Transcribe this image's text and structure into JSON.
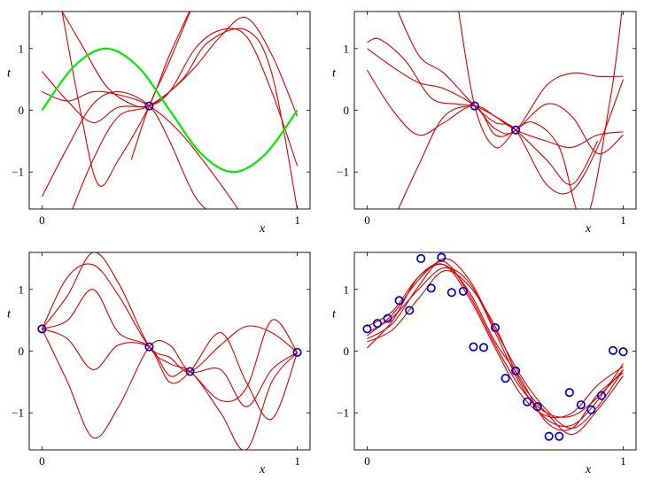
{
  "chart_data": [
    {
      "type": "line",
      "title": "",
      "xlabel": "x",
      "ylabel": "t",
      "xlim": [
        -0.05,
        1.05
      ],
      "ylim": [
        -1.6,
        1.6
      ],
      "xticks": [
        0,
        1
      ],
      "xticklabels": [
        "0",
        "1"
      ],
      "yticks": [
        -1,
        0,
        1
      ],
      "yticklabels": [
        "−1",
        "0",
        "1"
      ],
      "grid": false,
      "target": {
        "color": "#00ee00",
        "x": [
          0,
          0.125,
          0.25,
          0.375,
          0.5,
          0.625,
          0.75,
          0.875,
          1
        ],
        "y": [
          0,
          0.71,
          1.0,
          0.71,
          0,
          -0.71,
          -1.0,
          -0.71,
          0
        ]
      },
      "points": {
        "color": "#0000cc",
        "x": [
          0.42
        ],
        "y": [
          0.07
        ]
      },
      "series": [
        {
          "color": "#dd0000",
          "x": [
            0,
            0.1,
            0.2,
            0.3,
            0.42,
            0.5,
            0.6,
            0.7,
            0.8,
            0.9,
            1
          ],
          "y": [
            0.63,
            0.15,
            -0.2,
            0.05,
            0.07,
            0.3,
            1.0,
            1.3,
            1.2,
            0.3,
            -0.9
          ]
        },
        {
          "color": "#dd0000",
          "x": [
            0,
            0.1,
            0.2,
            0.3,
            0.42,
            0.5,
            0.6,
            0.7
          ],
          "y": [
            -1.4,
            -0.6,
            0.1,
            0.3,
            0.07,
            -0.5,
            -1.4,
            -1.8
          ]
        },
        {
          "color": "#dd0000",
          "x": [
            0.05,
            0.15,
            0.25,
            0.35,
            0.42,
            0.5,
            0.6,
            0.7,
            0.8,
            0.9,
            1
          ],
          "y": [
            1.8,
            1.1,
            0.4,
            0.1,
            0.07,
            0.3,
            0.7,
            1.2,
            1.5,
            0.9,
            -0.1
          ]
        },
        {
          "color": "#dd0000",
          "x": [
            0.07,
            0.15,
            0.22,
            0.3,
            0.42,
            0.5,
            0.6
          ],
          "y": [
            1.8,
            0.0,
            -1.2,
            -0.8,
            0.07,
            0.9,
            1.8
          ]
        },
        {
          "color": "#dd0000",
          "x": [
            0.1,
            0.2,
            0.3,
            0.42,
            0.55,
            0.65,
            0.8,
            0.9,
            1
          ],
          "y": [
            -1.8,
            -0.8,
            -0.1,
            0.07,
            0.5,
            1.1,
            1.3,
            0.6,
            -1.6
          ]
        },
        {
          "color": "#dd0000",
          "x": [
            0,
            0.1,
            0.2,
            0.3,
            0.42,
            0.55,
            0.7,
            0.8
          ],
          "y": [
            0.3,
            0.15,
            0.3,
            0.25,
            0.07,
            -0.4,
            -1.2,
            -1.8
          ]
        },
        {
          "color": "#dd0000",
          "x": [
            0.35,
            0.42,
            0.5,
            0.6
          ],
          "y": [
            -0.8,
            0.07,
            0.8,
            1.8
          ]
        }
      ]
    },
    {
      "type": "line",
      "title": "",
      "xlabel": "x",
      "ylabel": "t",
      "xlim": [
        -0.05,
        1.05
      ],
      "ylim": [
        -1.6,
        1.6
      ],
      "xticks": [
        0,
        1
      ],
      "xticklabels": [
        "0",
        "1"
      ],
      "yticks": [
        -1,
        0,
        1
      ],
      "yticklabels": [
        "−1",
        "0",
        "1"
      ],
      "grid": false,
      "points": {
        "color": "#0000cc",
        "x": [
          0.42,
          0.58
        ],
        "y": [
          0.07,
          -0.32
        ]
      },
      "series": [
        {
          "color": "#dd0000",
          "x": [
            0,
            0.05,
            0.15,
            0.25,
            0.35,
            0.42,
            0.5,
            0.58,
            0.7,
            0.8,
            0.9,
            1
          ],
          "y": [
            1.1,
            1.15,
            0.8,
            0.2,
            0.1,
            0.07,
            -0.1,
            -0.32,
            -0.5,
            -0.6,
            -0.4,
            -0.35
          ]
        },
        {
          "color": "#dd0000",
          "x": [
            0,
            0.1,
            0.2,
            0.3,
            0.42,
            0.5,
            0.58,
            0.7,
            0.8,
            0.9,
            1
          ],
          "y": [
            0.65,
            0.0,
            -0.4,
            -0.2,
            0.07,
            -0.4,
            -0.32,
            0.1,
            -0.1,
            -0.7,
            -0.4
          ]
        },
        {
          "color": "#dd0000",
          "x": [
            0,
            0.1,
            0.2,
            0.3,
            0.42,
            0.5,
            0.58,
            0.7,
            0.8,
            0.9,
            1
          ],
          "y": [
            1.0,
            0.7,
            0.45,
            0.35,
            0.07,
            -0.3,
            -0.32,
            0.4,
            0.6,
            0.55,
            0.55
          ]
        },
        {
          "color": "#dd0000",
          "x": [
            0.1,
            0.2,
            0.3,
            0.42,
            0.5,
            0.58,
            0.7,
            0.8,
            0.9,
            1
          ],
          "y": [
            1.8,
            0.9,
            0.6,
            0.07,
            -0.2,
            -0.32,
            -1.2,
            -1.3,
            -0.6,
            0.5
          ]
        },
        {
          "color": "#dd0000",
          "x": [
            0.1,
            0.2,
            0.3,
            0.42,
            0.5,
            0.58,
            0.7,
            0.8,
            0.9
          ],
          "y": [
            -1.8,
            -0.9,
            -0.1,
            0.07,
            -0.1,
            -0.32,
            -0.8,
            -1.2,
            -0.5
          ]
        },
        {
          "color": "#dd0000",
          "x": [
            0.35,
            0.42,
            0.5,
            0.58,
            0.65,
            0.75,
            0.85,
            0.95,
            1
          ],
          "y": [
            1.8,
            0.07,
            -0.6,
            -0.32,
            -0.2,
            -0.6,
            -1.8,
            0.2,
            1.8
          ]
        }
      ]
    },
    {
      "type": "line",
      "title": "",
      "xlabel": "x",
      "ylabel": "t",
      "xlim": [
        -0.05,
        1.05
      ],
      "ylim": [
        -1.6,
        1.6
      ],
      "xticks": [
        0,
        1
      ],
      "xticklabels": [
        "0",
        "1"
      ],
      "yticks": [
        -1,
        0,
        1
      ],
      "yticklabels": [
        "−1",
        "0",
        "1"
      ],
      "grid": false,
      "points": {
        "color": "#0000cc",
        "x": [
          0,
          0.42,
          0.58,
          1
        ],
        "y": [
          0.36,
          0.07,
          -0.33,
          -0.02
        ]
      },
      "series": [
        {
          "color": "#dd0000",
          "x": [
            0,
            0.1,
            0.2,
            0.3,
            0.42,
            0.5,
            0.58,
            0.7,
            0.8,
            0.9,
            1
          ],
          "y": [
            0.36,
            1.2,
            1.4,
            0.9,
            0.07,
            -0.1,
            -0.33,
            0.1,
            0.4,
            0.3,
            -0.02
          ]
        },
        {
          "color": "#dd0000",
          "x": [
            0,
            0.1,
            0.2,
            0.3,
            0.42,
            0.5,
            0.58,
            0.7,
            0.8,
            0.9,
            1
          ],
          "y": [
            0.36,
            0.9,
            1.6,
            1.1,
            0.07,
            -0.2,
            -0.33,
            -0.8,
            -0.6,
            0.5,
            -0.02
          ]
        },
        {
          "color": "#dd0000",
          "x": [
            0,
            0.1,
            0.2,
            0.3,
            0.42,
            0.5,
            0.58,
            0.7,
            0.8,
            0.9,
            1
          ],
          "y": [
            0.36,
            -0.5,
            -1.4,
            -0.9,
            0.07,
            0.1,
            -0.33,
            -0.3,
            -0.9,
            -0.3,
            -0.02
          ]
        },
        {
          "color": "#dd0000",
          "x": [
            0,
            0.1,
            0.2,
            0.3,
            0.42,
            0.5,
            0.58,
            0.7,
            0.8,
            0.9,
            1
          ],
          "y": [
            0.36,
            0.2,
            -0.3,
            0.1,
            0.07,
            -0.4,
            -0.33,
            -1.0,
            -1.6,
            -0.5,
            -0.02
          ]
        },
        {
          "color": "#dd0000",
          "x": [
            0,
            0.1,
            0.2,
            0.3,
            0.42,
            0.5,
            0.58,
            0.7,
            0.8,
            0.9,
            1
          ],
          "y": [
            0.36,
            0.5,
            1.0,
            0.3,
            0.07,
            -0.5,
            -0.33,
            0.3,
            -0.5,
            -1.1,
            -0.02
          ]
        }
      ]
    },
    {
      "type": "line",
      "title": "",
      "xlabel": "x",
      "ylabel": "t",
      "xlim": [
        -0.05,
        1.05
      ],
      "ylim": [
        -1.6,
        1.6
      ],
      "xticks": [
        0,
        1
      ],
      "xticklabels": [
        "0",
        "1"
      ],
      "yticks": [
        -1,
        0,
        1
      ],
      "yticklabels": [
        "−1",
        "0",
        "1"
      ],
      "grid": false,
      "points": {
        "color": "#0000cc",
        "x": [
          0,
          0.04,
          0.08,
          0.125,
          0.165,
          0.21,
          0.25,
          0.29,
          0.33,
          0.375,
          0.415,
          0.455,
          0.5,
          0.54,
          0.58,
          0.625,
          0.665,
          0.71,
          0.75,
          0.79,
          0.835,
          0.875,
          0.915,
          0.96,
          1
        ],
        "y": [
          0.36,
          0.45,
          0.53,
          0.82,
          0.66,
          1.5,
          1.02,
          1.52,
          0.95,
          0.97,
          0.07,
          0.06,
          0.38,
          -0.44,
          -0.32,
          -0.82,
          -0.9,
          -1.38,
          -1.38,
          -0.67,
          -0.87,
          -0.95,
          -0.72,
          0.01,
          -0.01
        ]
      },
      "series": [
        {
          "color": "#dd0000",
          "x": [
            0,
            0.1,
            0.2,
            0.3,
            0.4,
            0.5,
            0.6,
            0.7,
            0.8,
            0.9,
            1
          ],
          "y": [
            0.25,
            0.6,
            1.15,
            1.45,
            0.9,
            0.1,
            -0.6,
            -1.0,
            -1.05,
            -0.75,
            -0.3
          ]
        },
        {
          "color": "#dd0000",
          "x": [
            0,
            0.1,
            0.2,
            0.3,
            0.4,
            0.5,
            0.6,
            0.7,
            0.8,
            0.9,
            1
          ],
          "y": [
            0.3,
            0.55,
            1.0,
            1.35,
            1.1,
            0.3,
            -0.55,
            -1.1,
            -1.2,
            -0.8,
            -0.2
          ]
        },
        {
          "color": "#dd0000",
          "x": [
            0,
            0.1,
            0.2,
            0.3,
            0.4,
            0.5,
            0.6,
            0.7,
            0.8,
            0.9,
            1
          ],
          "y": [
            0.2,
            0.45,
            1.05,
            1.5,
            1.15,
            0.35,
            -0.4,
            -0.95,
            -1.25,
            -0.9,
            -0.3
          ]
        },
        {
          "color": "#dd0000",
          "x": [
            0,
            0.1,
            0.2,
            0.3,
            0.4,
            0.5,
            0.6,
            0.7,
            0.8,
            0.9,
            1
          ],
          "y": [
            0.05,
            0.5,
            1.2,
            1.4,
            0.85,
            0.05,
            -0.7,
            -1.05,
            -1.0,
            -0.55,
            -0.25
          ]
        },
        {
          "color": "#dd0000",
          "x": [
            0,
            0.1,
            0.2,
            0.3,
            0.4,
            0.5,
            0.6,
            0.7,
            0.8,
            0.9,
            1
          ],
          "y": [
            0.4,
            0.65,
            1.2,
            1.4,
            0.95,
            0.15,
            -0.45,
            -1.15,
            -1.25,
            -0.7,
            -0.35
          ]
        },
        {
          "color": "#dd0000",
          "x": [
            0,
            0.1,
            0.2,
            0.3,
            0.4,
            0.5,
            0.6,
            0.7,
            0.8,
            0.9,
            1
          ],
          "y": [
            0.15,
            0.35,
            0.85,
            1.3,
            1.05,
            0.4,
            -0.5,
            -1.0,
            -1.35,
            -0.95,
            -0.4
          ]
        }
      ]
    }
  ]
}
